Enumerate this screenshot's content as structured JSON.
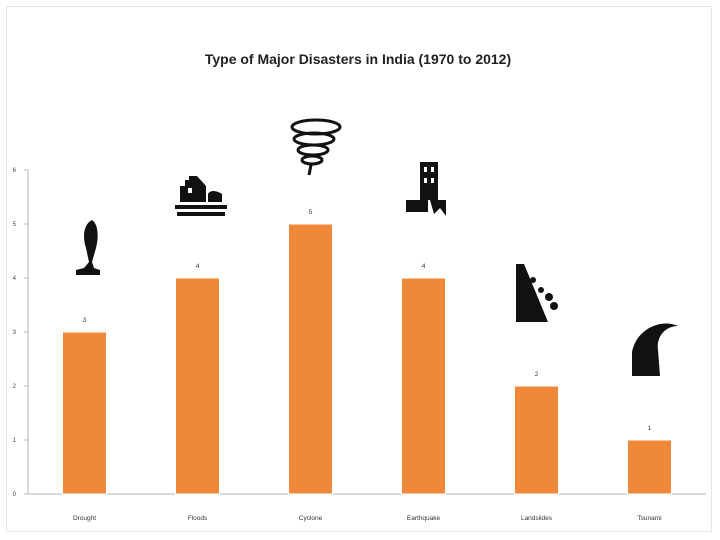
{
  "chart_data": {
    "type": "bar",
    "title": "Type of Major Disasters in India (1970 to 2012)",
    "categories": [
      "Drought",
      "Floods",
      "Cyclone",
      "Earthquake",
      "Landslides",
      "Tsunami"
    ],
    "values": [
      3,
      4,
      5,
      4,
      2,
      1
    ],
    "icons": [
      "drought-icon",
      "flood-icon",
      "cyclone-icon",
      "earthquake-icon",
      "landslide-icon",
      "tsunami-icon"
    ],
    "yticks": [
      "0",
      "1",
      "2",
      "3",
      "4",
      "5",
      "6"
    ],
    "ylim": [
      0,
      6
    ],
    "xlabel": "",
    "ylabel": "",
    "grid": false,
    "bar_color": "#f0883a",
    "icon_color": "#111111"
  }
}
